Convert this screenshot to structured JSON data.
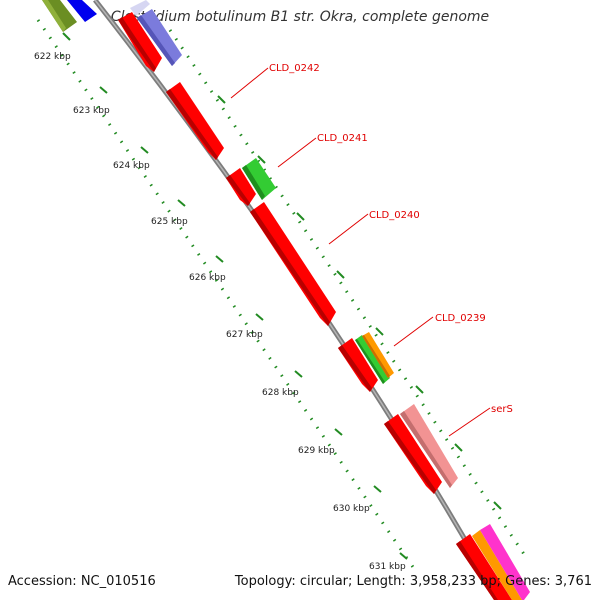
{
  "title": "Clostridium botulinum B1 str. Okra, complete genome",
  "footer": {
    "accession": "Accession: NC_010516",
    "stats": "Topology: circular; Length: 3,958,233 bp; Genes: 3,761"
  },
  "scale": {
    "unit": "kbp",
    "ticks": [
      "622 kbp",
      "623 kbp",
      "624 kbp",
      "625 kbp",
      "626 kbp",
      "627 kbp",
      "628 kbp",
      "629 kbp",
      "630 kbp",
      "631 kbp"
    ]
  },
  "gene_labels": [
    "CLD_0242",
    "CLD_0241",
    "CLD_0240",
    "CLD_0239",
    "serS"
  ],
  "colors": {
    "backbone": "#8c8c8c",
    "gene_red": "#ff0000",
    "gene_green": "#33cc33",
    "gene_orange": "#ff9900",
    "gene_pink": "#f29393",
    "gene_blue": "#0000ff",
    "gene_lavender": "#8080e0",
    "gene_olive": "#6b8e23",
    "gene_magenta": "#ff33cc",
    "label_red": "#e00000",
    "dots": "#228b22"
  }
}
